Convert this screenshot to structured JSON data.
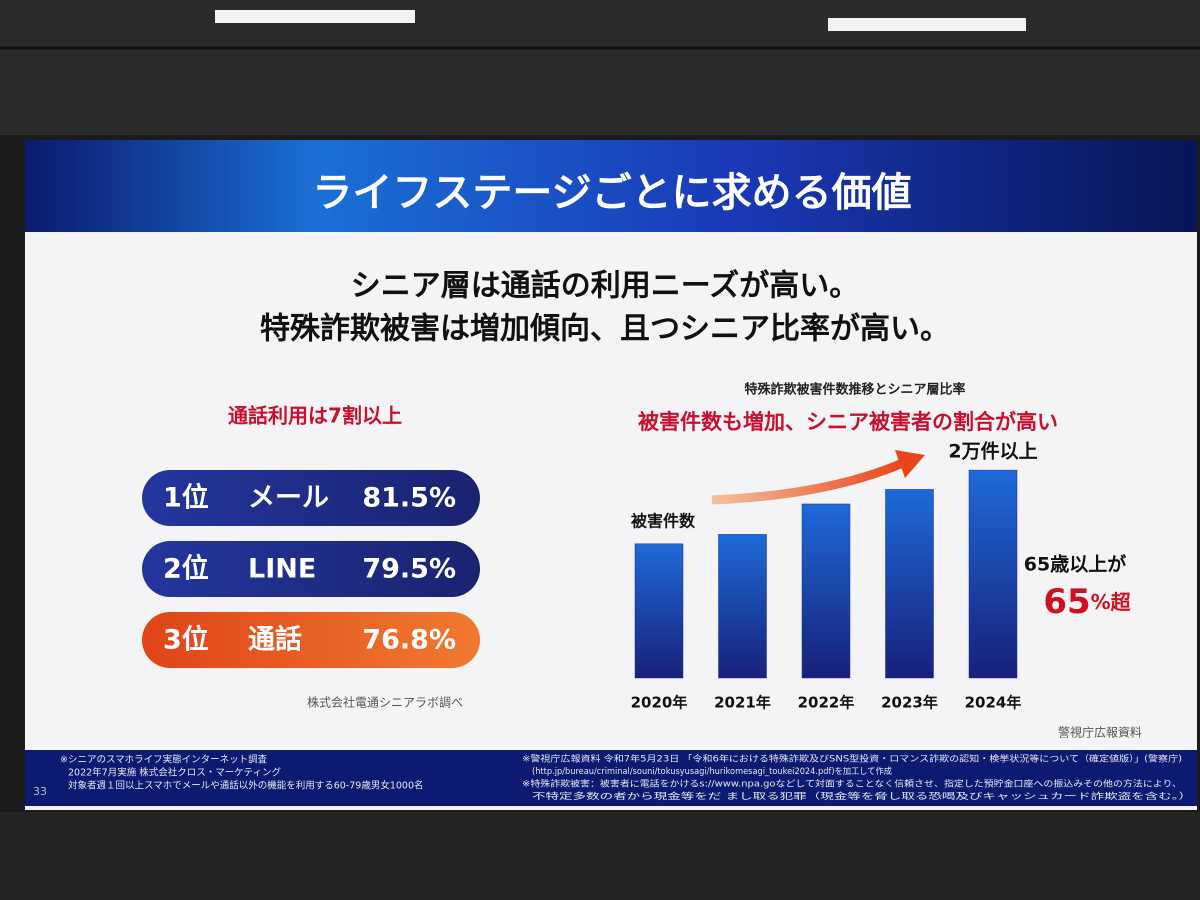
{
  "slide": {
    "title": "ライフステージごとに求める価値",
    "headline": [
      "シニア層は通話の利用ニーズが高い。",
      "特殊詐欺被害は増加傾向、且つシニア比率が高い。"
    ],
    "left": {
      "heading": "通話利用は7割以上",
      "ranks": [
        {
          "rank": "1位",
          "name": "メール",
          "percent": "81.5%"
        },
        {
          "rank": "2位",
          "name": "LINE",
          "percent": "79.5%"
        },
        {
          "rank": "3位",
          "name": "通話",
          "percent": "76.8%"
        }
      ],
      "source": "株式会社電通シニアラボ調べ"
    },
    "footer": {
      "left": [
        "※シニアのスマホライフ実態インターネット調査",
        "2022年7月実施 株式会社クロス・マーケティング",
        "対象者週１回以上スマホでメールや通話以外の機能を利用する60-79歳男女1000名"
      ],
      "right": [
        "※警視庁広報資料 令和7年5月23日 「令和6年における特殊詐欺及びSNS型投資・ロマンス詐欺の認知・検挙状況等について（確定値版）」(警察庁)",
        "(http.jp/bureau/criminal/souni/tokusyusagi/hurikomesagi_toukei2024.pdf)を加工して作成",
        "※特殊詐欺被害：被害者に電話をかけるs://www.npa.goなどして対面することなく信頼させ、指定した預貯金口座への振込みその他の方法により、",
        "不特定多数の者から現金等をだ まし取る犯罪（現金等を脅し取る恐喝及びキャッシュカード詐欺盗を含む。）"
      ],
      "page": "33"
    }
  },
  "chart_data": {
    "type": "bar",
    "title": "特殊詐欺被害件数推移とシニア層比率",
    "subtitle": "被害件数も増加、シニア被害者の割合が高い",
    "y_label": "被害件数",
    "categories": [
      "2020年",
      "2021年",
      "2022年",
      "2023年",
      "2024年"
    ],
    "values": [
      13550,
      14498,
      17570,
      19038,
      20987
    ],
    "color": "#1e2d9e",
    "ylim": [
      0,
      21000
    ],
    "annotations": {
      "peak": "2万件以上",
      "senior": "65歳以上が",
      "senior_value": "65",
      "senior_suffix": "%超"
    },
    "source": "警視庁広報資料"
  }
}
